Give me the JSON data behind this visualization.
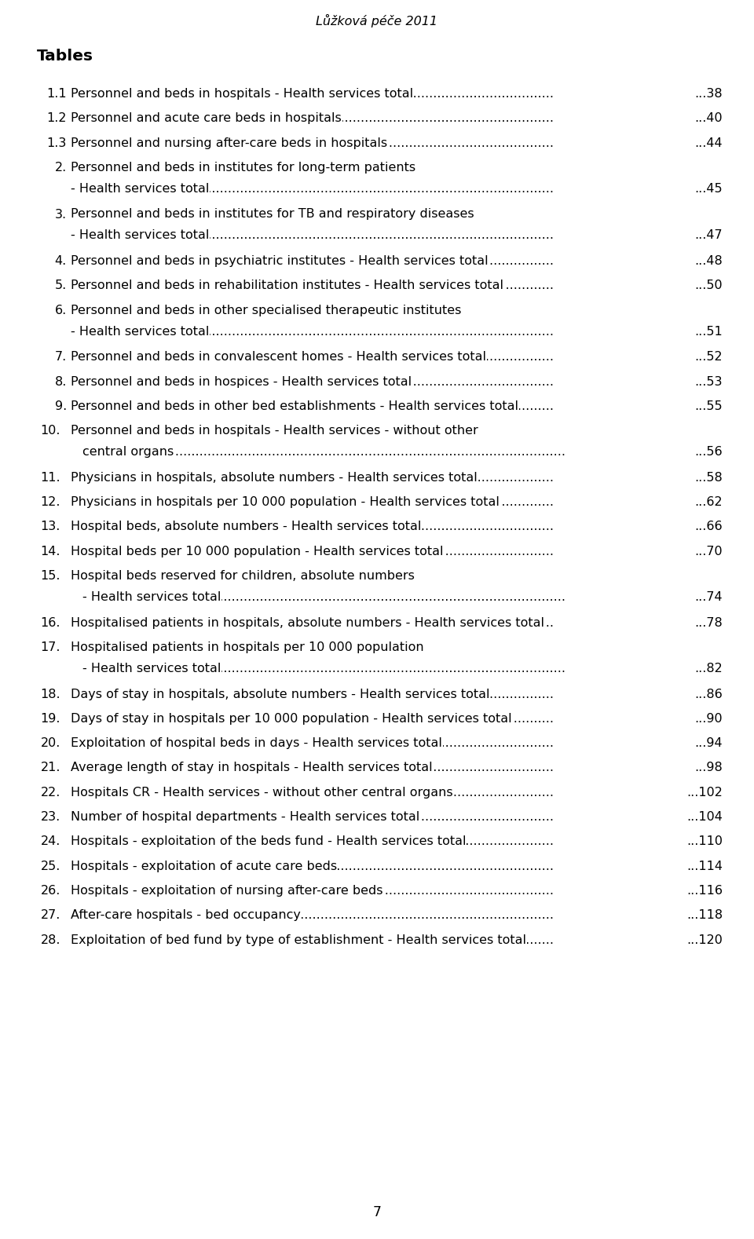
{
  "header_italic": "Lůžková péče 2011",
  "section_header": "Tables",
  "entries": [
    {
      "num": "1.1",
      "text": "Personnel and beds in hospitals - Health services total",
      "page": "38",
      "multiline": false
    },
    {
      "num": "1.2",
      "text": "Personnel and acute care beds in hospitals",
      "page": "40",
      "multiline": false
    },
    {
      "num": "1.3",
      "text": "Personnel and nursing after-care beds in hospitals",
      "page": "44",
      "multiline": false
    },
    {
      "num": "2.",
      "text": "Personnel and beds in institutes for long-term patients",
      "text2": "- Health services total",
      "page": "45",
      "multiline": true
    },
    {
      "num": "3.",
      "text": "Personnel and beds in institutes for TB and respiratory diseases",
      "text2": "- Health services total",
      "page": "47",
      "multiline": true
    },
    {
      "num": "4.",
      "text": "Personnel and beds in psychiatric institutes - Health services total",
      "page": "48",
      "multiline": false
    },
    {
      "num": "5.",
      "text": "Personnel and beds in rehabilitation institutes - Health services total",
      "page": "50",
      "multiline": false
    },
    {
      "num": "6.",
      "text": "Personnel and beds in other specialised therapeutic institutes",
      "text2": "- Health services total",
      "page": "51",
      "multiline": true
    },
    {
      "num": "7.",
      "text": "Personnel and beds in convalescent homes - Health services total",
      "page": "52",
      "multiline": false
    },
    {
      "num": "8.",
      "text": "Personnel and beds in hospices - Health services total",
      "page": "53",
      "multiline": false
    },
    {
      "num": "9.",
      "text": "Personnel and beds in other bed establishments - Health services total",
      "page": "55",
      "multiline": false
    },
    {
      "num": "10.",
      "text": "Personnel and beds in hospitals - Health services - without other",
      "text2": "central organs",
      "page": "56",
      "multiline": true
    },
    {
      "num": "11.",
      "text": "Physicians in hospitals, absolute numbers - Health services total",
      "page": "58",
      "multiline": false
    },
    {
      "num": "12.",
      "text": "Physicians in hospitals per 10 000 population - Health services total",
      "page": "62",
      "multiline": false
    },
    {
      "num": "13.",
      "text": "Hospital beds, absolute numbers - Health services total",
      "page": "66",
      "multiline": false
    },
    {
      "num": "14.",
      "text": "Hospital beds per 10 000 population - Health services total",
      "page": "70",
      "multiline": false
    },
    {
      "num": "15.",
      "text": "Hospital beds reserved for children, absolute numbers",
      "text2": "- Health services total",
      "page": "74",
      "multiline": true
    },
    {
      "num": "16.",
      "text": "Hospitalised patients in hospitals, absolute numbers - Health services total",
      "page": "78",
      "multiline": false
    },
    {
      "num": "17.",
      "text": "Hospitalised patients in hospitals per 10 000 population",
      "text2": "- Health services total",
      "page": "82",
      "multiline": true
    },
    {
      "num": "18.",
      "text": "Days of stay in hospitals, absolute numbers - Health services total",
      "page": "86",
      "multiline": false
    },
    {
      "num": "19.",
      "text": "Days of stay in hospitals per 10 000 population - Health services total",
      "page": "90",
      "multiline": false
    },
    {
      "num": "20.",
      "text": "Exploitation of hospital beds in days - Health services total",
      "page": "94",
      "multiline": false
    },
    {
      "num": "21.",
      "text": "Average length of stay in hospitals - Health services total",
      "page": "98",
      "multiline": false
    },
    {
      "num": "22.",
      "text": "Hospitals CR - Health services - without other central organs",
      "page": "102",
      "multiline": false
    },
    {
      "num": "23.",
      "text": "Number of hospital departments - Health services total",
      "page": "104",
      "multiline": false
    },
    {
      "num": "24.",
      "text": "Hospitals - exploitation of the beds fund - Health services total",
      "page": "110",
      "multiline": false
    },
    {
      "num": "25.",
      "text": "Hospitals - exploitation of acute care beds",
      "page": "114",
      "multiline": false
    },
    {
      "num": "26.",
      "text": "Hospitals - exploitation of nursing after-care beds",
      "page": "116",
      "multiline": false
    },
    {
      "num": "27.",
      "text": "After-care hospitals - bed occupancy",
      "page": "118",
      "multiline": false
    },
    {
      "num": "28.",
      "text": "Exploitation of bed fund by type of establishment - Health services total",
      "page": "120",
      "multiline": false
    }
  ],
  "footer_page": "7",
  "bg_color": "#ffffff",
  "text_color": "#000000",
  "font_size": 11.5,
  "section_font_size": 14.5
}
